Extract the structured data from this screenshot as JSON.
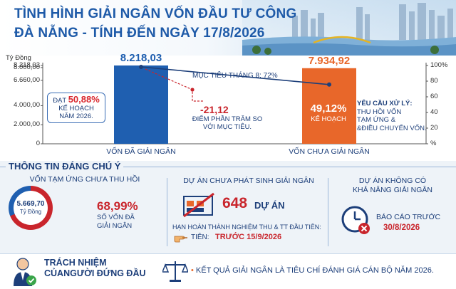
{
  "header": {
    "title_line1": "TÌNH HÌNH GIẢI NGÂN VỐN ĐẦU TƯ CÔNG",
    "title_line2": "ĐÀ NẴNG - TÍNH ĐẾN NGÀY 17/8/2026"
  },
  "chart_data": {
    "type": "bar",
    "y_left_unit": "Tỷ Đồng",
    "y_left_ticks": [
      "8.218,03",
      "8.000,00",
      "6.660,00",
      "4.000,00",
      "2.000,00",
      "0"
    ],
    "y_left_tick_values": [
      8218.03,
      8000,
      6660,
      4000,
      2000,
      0
    ],
    "y_right_ticks": [
      "100%",
      "80",
      "60",
      "40",
      "20",
      "%"
    ],
    "y_right_tick_values": [
      100,
      80,
      60,
      40,
      20,
      0
    ],
    "ylim": [
      0,
      8218.03
    ],
    "categories": [
      "VỐN ĐÃ GIẢI NGÂN",
      "VỐN CHƯA GIẢI NGÂN"
    ],
    "values": [
      8218.03,
      7934.92
    ],
    "value_labels": [
      "8.218,03",
      "7.934,92"
    ],
    "bar_colors": [
      "#1f5fb0",
      "#e8672a"
    ],
    "target_line": {
      "label": "MỤC TIÊU THÁNG 8: 72%",
      "value_percent": 72
    },
    "annotations": {
      "achieved_prefix": "ĐẠT",
      "achieved_value": "50,88%",
      "achieved_suffix": "KẾ HOẠCH NĂM 2026.",
      "gap_value": "-21,12",
      "gap_note": "ĐIỂM PHẦN TRĂM SO VỚI MỤC TIÊU.",
      "remaining_value": "49,12%",
      "remaining_suffix": "KẾ HOẠCH",
      "request_title": "YÊU CẦU XỬ LÝ:",
      "request_lines": [
        "THU HỒI VỐN",
        "TẠM ỨNG &",
        "&ĐIỀU CHUYỂN VỐN."
      ]
    }
  },
  "info": {
    "section_title": "THÔNG TIN ĐÁNG CHÚ Ý",
    "advance": {
      "title": "VỐN TẠM ỨNG CHƯA THU HỒI",
      "amount": "5.669,70",
      "unit": "Tỷ Đồng",
      "percent": "68,99%",
      "percent_note_1": "SỐ VỐN ĐÃ",
      "percent_note_2": "GIẢI NGÂN",
      "percent_value": 68.99,
      "accent": "#c9252c",
      "base": "#1f5fb0"
    },
    "projects": {
      "title": "DỰ ÁN CHƯA PHÁT SINH GIẢI NGÂN",
      "count": "648",
      "count_unit": "DỰ ÁN",
      "deadline_line": "HẠN HOÀN THÀNH NGHIỆM THU & TT ĐẦU TIÊN:",
      "deadline_prefix": "TIÊN:",
      "deadline_value": "TRƯỚC 15/9/2026"
    },
    "unable": {
      "title_1": "DỰ ÁN KHÔNG CÓ",
      "title_2": "KHẢ NĂNG GIẢI NGÂN",
      "report_label": "BÁO CÁO TRƯỚC",
      "report_date": "30/8/2026"
    }
  },
  "footer": {
    "responsibility_1": "TRÁCH NHIỆM",
    "responsibility_2": "CỦANGƯỜI ĐỨNG ĐẦU",
    "criterion": "KẾT QUẢ GIẢI NGÂN LÀ TIÊU CHÍ ĐÁNH GIÁ CÁN BỘ NĂM 2026."
  }
}
